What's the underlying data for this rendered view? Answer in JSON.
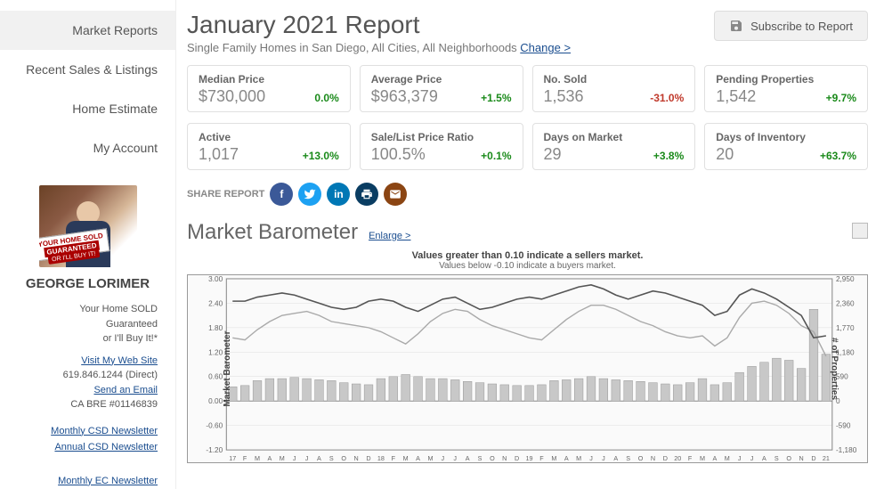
{
  "nav": {
    "items": [
      "Market Reports",
      "Recent Sales & Listings",
      "Home Estimate",
      "My Account"
    ],
    "active_index": 0
  },
  "agent": {
    "banner_top": "YOUR HOME SOLD",
    "banner_mid": "GUARANTEED",
    "banner_bot": "OR I'LL BUY IT!",
    "name": "GEORGE LORIMER",
    "line1": "Your Home SOLD",
    "line2": "Guaranteed",
    "line3": "or I'll Buy It!*",
    "visit": "Visit My Web Site",
    "phone": "619.846.1244 (Direct)",
    "email": "Send an Email",
    "bre": "CA BRE #01146839",
    "news1": "Monthly CSD Newsletter",
    "news2": "Annual CSD Newsletter",
    "news3": "Monthly EC Newsletter"
  },
  "header": {
    "title": "January 2021 Report",
    "subtitle_prefix": "Single Family Homes in San Diego, All Cities, All Neighborhoods ",
    "change": "Change >",
    "subscribe": "Subscribe to Report"
  },
  "stats": {
    "row1": [
      {
        "label": "Median Price",
        "value": "$730,000",
        "pct": "0.0%",
        "cls": "pct-pos"
      },
      {
        "label": "Average Price",
        "value": "$963,379",
        "pct": "+1.5%",
        "cls": "pct-pos"
      },
      {
        "label": "No. Sold",
        "value": "1,536",
        "pct": "-31.0%",
        "cls": "pct-neg"
      },
      {
        "label": "Pending Properties",
        "value": "1,542",
        "pct": "+9.7%",
        "cls": "pct-pos"
      }
    ],
    "row2": [
      {
        "label": "Active",
        "value": "1,017",
        "pct": "+13.0%",
        "cls": "pct-pos"
      },
      {
        "label": "Sale/List Price Ratio",
        "value": "100.5%",
        "pct": "+0.1%",
        "cls": "pct-pos"
      },
      {
        "label": "Days on Market",
        "value": "29",
        "pct": "+3.8%",
        "cls": "pct-pos"
      },
      {
        "label": "Days of Inventory",
        "value": "20",
        "pct": "+63.7%",
        "cls": "pct-pos"
      }
    ]
  },
  "share": {
    "label": "SHARE REPORT"
  },
  "barometer": {
    "title": "Market Barometer",
    "enlarge": "Enlarge >",
    "chart_title": "Values greater than 0.10 indicate a sellers market.",
    "chart_sub": "Values below -0.10 indicate a buyers market.",
    "y1_label": "Market Barometer",
    "y2_label": "# of Properties",
    "y1_ticks": [
      3.0,
      2.4,
      1.8,
      1.2,
      0.6,
      0.0,
      -0.6,
      -1.2
    ],
    "y2_ticks": [
      2950,
      2360,
      1770,
      1180,
      590,
      0,
      -590,
      -1180
    ],
    "y1_min": -1.2,
    "y1_max": 3.0,
    "x_labels": [
      "17",
      "F",
      "M",
      "A",
      "M",
      "J",
      "J",
      "A",
      "S",
      "O",
      "N",
      "D",
      "18",
      "F",
      "M",
      "A",
      "M",
      "J",
      "J",
      "A",
      "S",
      "O",
      "N",
      "D",
      "19",
      "F",
      "M",
      "A",
      "M",
      "J",
      "J",
      "A",
      "S",
      "O",
      "N",
      "D",
      "20",
      "F",
      "M",
      "A",
      "M",
      "J",
      "J",
      "A",
      "S",
      "O",
      "N",
      "D",
      "21"
    ],
    "bars": [
      0.35,
      0.38,
      0.5,
      0.55,
      0.55,
      0.58,
      0.55,
      0.52,
      0.5,
      0.45,
      0.42,
      0.4,
      0.55,
      0.6,
      0.65,
      0.6,
      0.55,
      0.55,
      0.52,
      0.48,
      0.45,
      0.42,
      0.4,
      0.38,
      0.38,
      0.4,
      0.5,
      0.52,
      0.55,
      0.6,
      0.55,
      0.52,
      0.5,
      0.48,
      0.45,
      0.42,
      0.4,
      0.45,
      0.55,
      0.4,
      0.45,
      0.7,
      0.85,
      0.95,
      1.05,
      1.0,
      0.8,
      2.25,
      1.15
    ],
    "line_dark": [
      2.45,
      2.45,
      2.55,
      2.6,
      2.65,
      2.6,
      2.5,
      2.4,
      2.3,
      2.25,
      2.3,
      2.45,
      2.5,
      2.45,
      2.3,
      2.2,
      2.35,
      2.5,
      2.55,
      2.4,
      2.25,
      2.3,
      2.4,
      2.5,
      2.55,
      2.5,
      2.6,
      2.7,
      2.8,
      2.85,
      2.75,
      2.6,
      2.5,
      2.6,
      2.7,
      2.65,
      2.55,
      2.45,
      2.35,
      2.1,
      2.2,
      2.6,
      2.75,
      2.65,
      2.5,
      2.3,
      2.1,
      1.55,
      1.6
    ],
    "line_light": [
      1.55,
      1.5,
      1.75,
      1.95,
      2.1,
      2.15,
      2.2,
      2.1,
      1.95,
      1.9,
      1.85,
      1.8,
      1.7,
      1.55,
      1.4,
      1.65,
      1.95,
      2.15,
      2.25,
      2.2,
      2.0,
      1.85,
      1.75,
      1.65,
      1.55,
      1.5,
      1.75,
      2.0,
      2.2,
      2.35,
      2.35,
      2.25,
      2.1,
      1.95,
      1.85,
      1.7,
      1.6,
      1.55,
      1.6,
      1.35,
      1.55,
      2.05,
      2.4,
      2.45,
      2.35,
      2.15,
      1.85,
      1.7,
      1.1
    ],
    "bar_color": "#c8c8c8",
    "line_dark_color": "#555555",
    "line_light_color": "#aaaaaa",
    "grid_color": "#dddddd",
    "axis_color": "#888888",
    "tick_font": "8px"
  }
}
